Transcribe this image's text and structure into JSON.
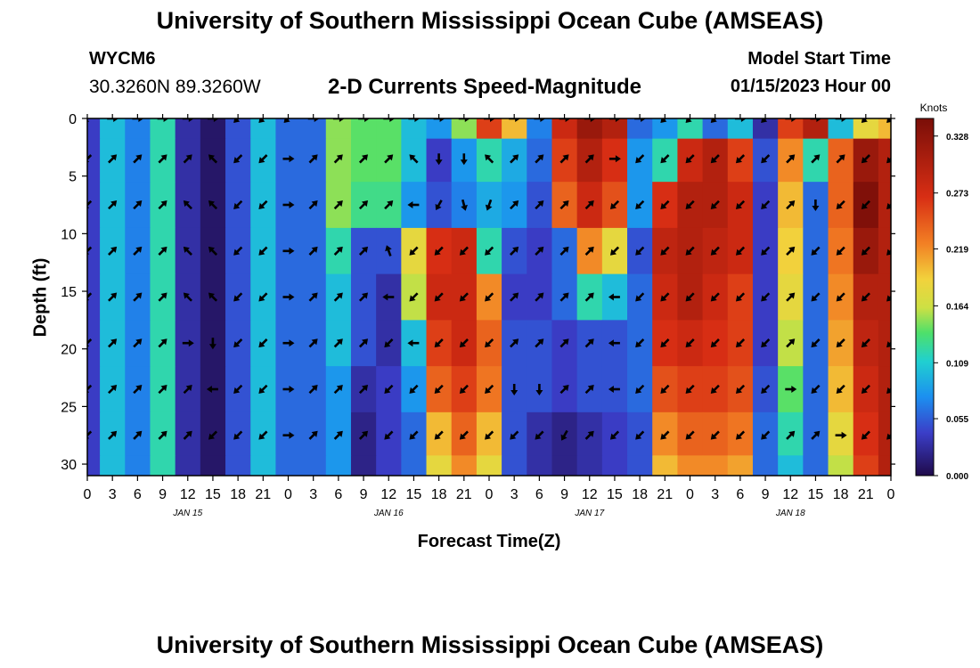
{
  "header": {
    "title": "University of Southern Mississippi Ocean Cube (AMSEAS)",
    "station_id": "WYCM6",
    "coordinates": "30.3260N  89.3260W",
    "subtitle": "2-D Currents Speed-Magnitude",
    "model_start_label": "Model Start Time",
    "model_start_value": "01/15/2023 Hour 00"
  },
  "footer": {
    "title": "University of Southern Mississippi Ocean Cube (AMSEAS)"
  },
  "colors": {
    "background": "#ffffff",
    "arrow": "#000000"
  },
  "chart_data": {
    "type": "heatmap",
    "title": "2-D Currents Speed-Magnitude",
    "xlabel": "Forecast Time(Z)",
    "ylabel": "Depth (ft)",
    "x_ticks": [
      "0",
      "3",
      "6",
      "9",
      "12",
      "15",
      "18",
      "21",
      "0",
      "3",
      "6",
      "9",
      "12",
      "15",
      "18",
      "21",
      "0",
      "3",
      "6",
      "9",
      "12",
      "15",
      "18",
      "21",
      "0",
      "3",
      "6",
      "9",
      "12",
      "15",
      "18",
      "21",
      "0"
    ],
    "day_labels": [
      {
        "label": "JAN 15",
        "hour": 12
      },
      {
        "label": "JAN 16",
        "hour": 36
      },
      {
        "label": "JAN 17",
        "hour": 60
      },
      {
        "label": "JAN 18",
        "hour": 84
      }
    ],
    "xlim_hours": [
      0,
      96
    ],
    "ylim_ft": [
      31,
      0
    ],
    "y_ticks": [
      0,
      5,
      10,
      15,
      20,
      25,
      30
    ],
    "colorbar": {
      "label": "Knots",
      "range": [
        0,
        0.345
      ],
      "ticks": [
        "0.328",
        "0.273",
        "0.219",
        "0.164",
        "0.109",
        "0.055",
        "0.000"
      ],
      "tick_values": [
        0.328,
        0.273,
        0.219,
        0.164,
        0.109,
        0.055,
        0.0
      ]
    },
    "time_hours": [
      0,
      3,
      6,
      9,
      12,
      15,
      18,
      21,
      24,
      27,
      30,
      33,
      36,
      39,
      42,
      45,
      48,
      51,
      54,
      57,
      60,
      63,
      66,
      69,
      72,
      75,
      78,
      81,
      84,
      87,
      90,
      93,
      96
    ],
    "depths_ft": [
      0,
      3.5,
      7.5,
      11.5,
      15.5,
      19.5,
      23.5,
      27.5,
      31
    ],
    "speed_knots": [
      [
        0.04,
        0.1,
        0.07,
        0.12,
        0.03,
        0.01,
        0.05,
        0.1,
        0.06,
        0.06,
        0.15,
        0.14,
        0.14,
        0.1,
        0.08,
        0.15,
        0.26,
        0.2,
        0.07,
        0.28,
        0.32,
        0.3,
        0.06,
        0.08,
        0.12,
        0.06,
        0.1,
        0.03,
        0.26,
        0.3,
        0.1,
        0.18,
        0.2
      ],
      [
        0.04,
        0.1,
        0.07,
        0.12,
        0.03,
        0.01,
        0.05,
        0.1,
        0.06,
        0.06,
        0.15,
        0.14,
        0.14,
        0.1,
        0.04,
        0.08,
        0.12,
        0.09,
        0.06,
        0.26,
        0.3,
        0.27,
        0.08,
        0.12,
        0.28,
        0.3,
        0.26,
        0.05,
        0.22,
        0.12,
        0.24,
        0.32,
        0.3
      ],
      [
        0.04,
        0.1,
        0.07,
        0.12,
        0.03,
        0.01,
        0.05,
        0.1,
        0.06,
        0.06,
        0.15,
        0.13,
        0.13,
        0.08,
        0.05,
        0.07,
        0.09,
        0.08,
        0.05,
        0.24,
        0.28,
        0.25,
        0.08,
        0.27,
        0.3,
        0.3,
        0.28,
        0.04,
        0.2,
        0.06,
        0.24,
        0.34,
        0.3
      ],
      [
        0.04,
        0.1,
        0.07,
        0.12,
        0.03,
        0.01,
        0.05,
        0.1,
        0.06,
        0.06,
        0.12,
        0.05,
        0.05,
        0.18,
        0.27,
        0.28,
        0.12,
        0.05,
        0.04,
        0.06,
        0.22,
        0.18,
        0.05,
        0.29,
        0.3,
        0.29,
        0.28,
        0.04,
        0.19,
        0.06,
        0.23,
        0.32,
        0.3
      ],
      [
        0.04,
        0.1,
        0.07,
        0.12,
        0.03,
        0.01,
        0.05,
        0.1,
        0.06,
        0.06,
        0.1,
        0.05,
        0.03,
        0.16,
        0.28,
        0.28,
        0.22,
        0.04,
        0.04,
        0.06,
        0.12,
        0.1,
        0.06,
        0.28,
        0.3,
        0.28,
        0.26,
        0.04,
        0.18,
        0.06,
        0.22,
        0.3,
        0.3
      ],
      [
        0.04,
        0.1,
        0.07,
        0.12,
        0.03,
        0.01,
        0.05,
        0.1,
        0.06,
        0.06,
        0.1,
        0.05,
        0.03,
        0.1,
        0.26,
        0.28,
        0.24,
        0.05,
        0.05,
        0.04,
        0.05,
        0.05,
        0.06,
        0.27,
        0.28,
        0.27,
        0.26,
        0.04,
        0.16,
        0.06,
        0.21,
        0.29,
        0.3
      ],
      [
        0.04,
        0.1,
        0.07,
        0.12,
        0.03,
        0.01,
        0.05,
        0.1,
        0.06,
        0.06,
        0.08,
        0.03,
        0.04,
        0.08,
        0.24,
        0.26,
        0.23,
        0.05,
        0.05,
        0.04,
        0.05,
        0.05,
        0.06,
        0.25,
        0.26,
        0.26,
        0.25,
        0.05,
        0.14,
        0.06,
        0.2,
        0.28,
        0.3
      ],
      [
        0.04,
        0.1,
        0.07,
        0.12,
        0.03,
        0.01,
        0.05,
        0.1,
        0.06,
        0.06,
        0.08,
        0.02,
        0.04,
        0.06,
        0.2,
        0.24,
        0.2,
        0.05,
        0.03,
        0.02,
        0.03,
        0.04,
        0.05,
        0.22,
        0.24,
        0.24,
        0.23,
        0.06,
        0.12,
        0.06,
        0.18,
        0.27,
        0.3
      ],
      [
        0.04,
        0.1,
        0.07,
        0.12,
        0.03,
        0.01,
        0.05,
        0.1,
        0.06,
        0.06,
        0.08,
        0.02,
        0.04,
        0.06,
        0.18,
        0.22,
        0.18,
        0.05,
        0.03,
        0.02,
        0.03,
        0.04,
        0.05,
        0.2,
        0.22,
        0.22,
        0.21,
        0.06,
        0.1,
        0.06,
        0.16,
        0.26,
        0.3
      ]
    ],
    "arrow_rows_ft": [
      0,
      3.5,
      7.5,
      11.5,
      15.5,
      19.5,
      23.5,
      27.5
    ],
    "arrow_cols_hours": [
      0,
      3,
      6,
      9,
      12,
      15,
      18,
      21,
      24,
      27,
      30,
      33,
      36,
      39,
      42,
      45,
      48,
      51,
      54,
      57,
      60,
      63,
      66,
      69,
      72,
      75,
      78,
      81,
      84,
      87,
      90,
      93,
      96
    ],
    "arrow_direction_deg": [
      [
        -135,
        0,
        0,
        0,
        0,
        0,
        -135,
        -135,
        -135,
        0,
        0,
        0,
        0,
        0,
        0,
        0,
        0,
        0,
        0,
        0,
        0,
        0,
        0,
        -135,
        -135,
        -135,
        0,
        -135,
        0,
        0,
        0,
        -135,
        -135
      ],
      [
        -135,
        45,
        45,
        45,
        45,
        135,
        -135,
        -135,
        0,
        45,
        45,
        45,
        45,
        135,
        -90,
        -90,
        135,
        45,
        45,
        45,
        45,
        0,
        -135,
        -135,
        -135,
        -135,
        -135,
        -135,
        45,
        45,
        45,
        -135,
        -135
      ],
      [
        -135,
        45,
        45,
        45,
        135,
        135,
        -135,
        -135,
        0,
        45,
        45,
        45,
        45,
        180,
        -120,
        -75,
        -110,
        45,
        45,
        45,
        45,
        -135,
        -135,
        -135,
        -135,
        -135,
        -135,
        -135,
        45,
        -90,
        -135,
        -135,
        -135
      ],
      [
        -135,
        45,
        45,
        45,
        135,
        135,
        -135,
        -135,
        0,
        45,
        45,
        45,
        110,
        -135,
        -135,
        -135,
        -135,
        45,
        45,
        45,
        45,
        -135,
        -135,
        -135,
        -135,
        -135,
        -135,
        -135,
        45,
        -135,
        -135,
        -135,
        -135
      ],
      [
        -135,
        45,
        45,
        45,
        135,
        135,
        -135,
        -135,
        0,
        45,
        45,
        45,
        180,
        -135,
        -135,
        -135,
        -135,
        45,
        45,
        45,
        45,
        180,
        -135,
        -135,
        -135,
        -135,
        -135,
        -135,
        45,
        -135,
        -135,
        -135,
        -135
      ],
      [
        -135,
        45,
        45,
        45,
        0,
        -90,
        -135,
        -135,
        0,
        45,
        45,
        45,
        -135,
        180,
        -135,
        -135,
        -135,
        45,
        45,
        45,
        45,
        180,
        -135,
        -135,
        -135,
        -135,
        -135,
        -135,
        45,
        -135,
        -135,
        -135,
        -135
      ],
      [
        -135,
        45,
        45,
        45,
        45,
        180,
        -135,
        -135,
        0,
        45,
        45,
        45,
        -135,
        -135,
        -135,
        -135,
        -135,
        -90,
        -90,
        45,
        45,
        180,
        -135,
        -135,
        -135,
        -135,
        -135,
        -135,
        0,
        -135,
        -135,
        -135,
        -135
      ],
      [
        -135,
        45,
        45,
        45,
        45,
        -135,
        -135,
        -135,
        0,
        45,
        45,
        45,
        -135,
        -135,
        -135,
        -135,
        -135,
        -135,
        -135,
        -120,
        45,
        -135,
        -135,
        -135,
        -135,
        -135,
        -135,
        -135,
        45,
        45,
        0,
        -135,
        -135
      ]
    ]
  }
}
